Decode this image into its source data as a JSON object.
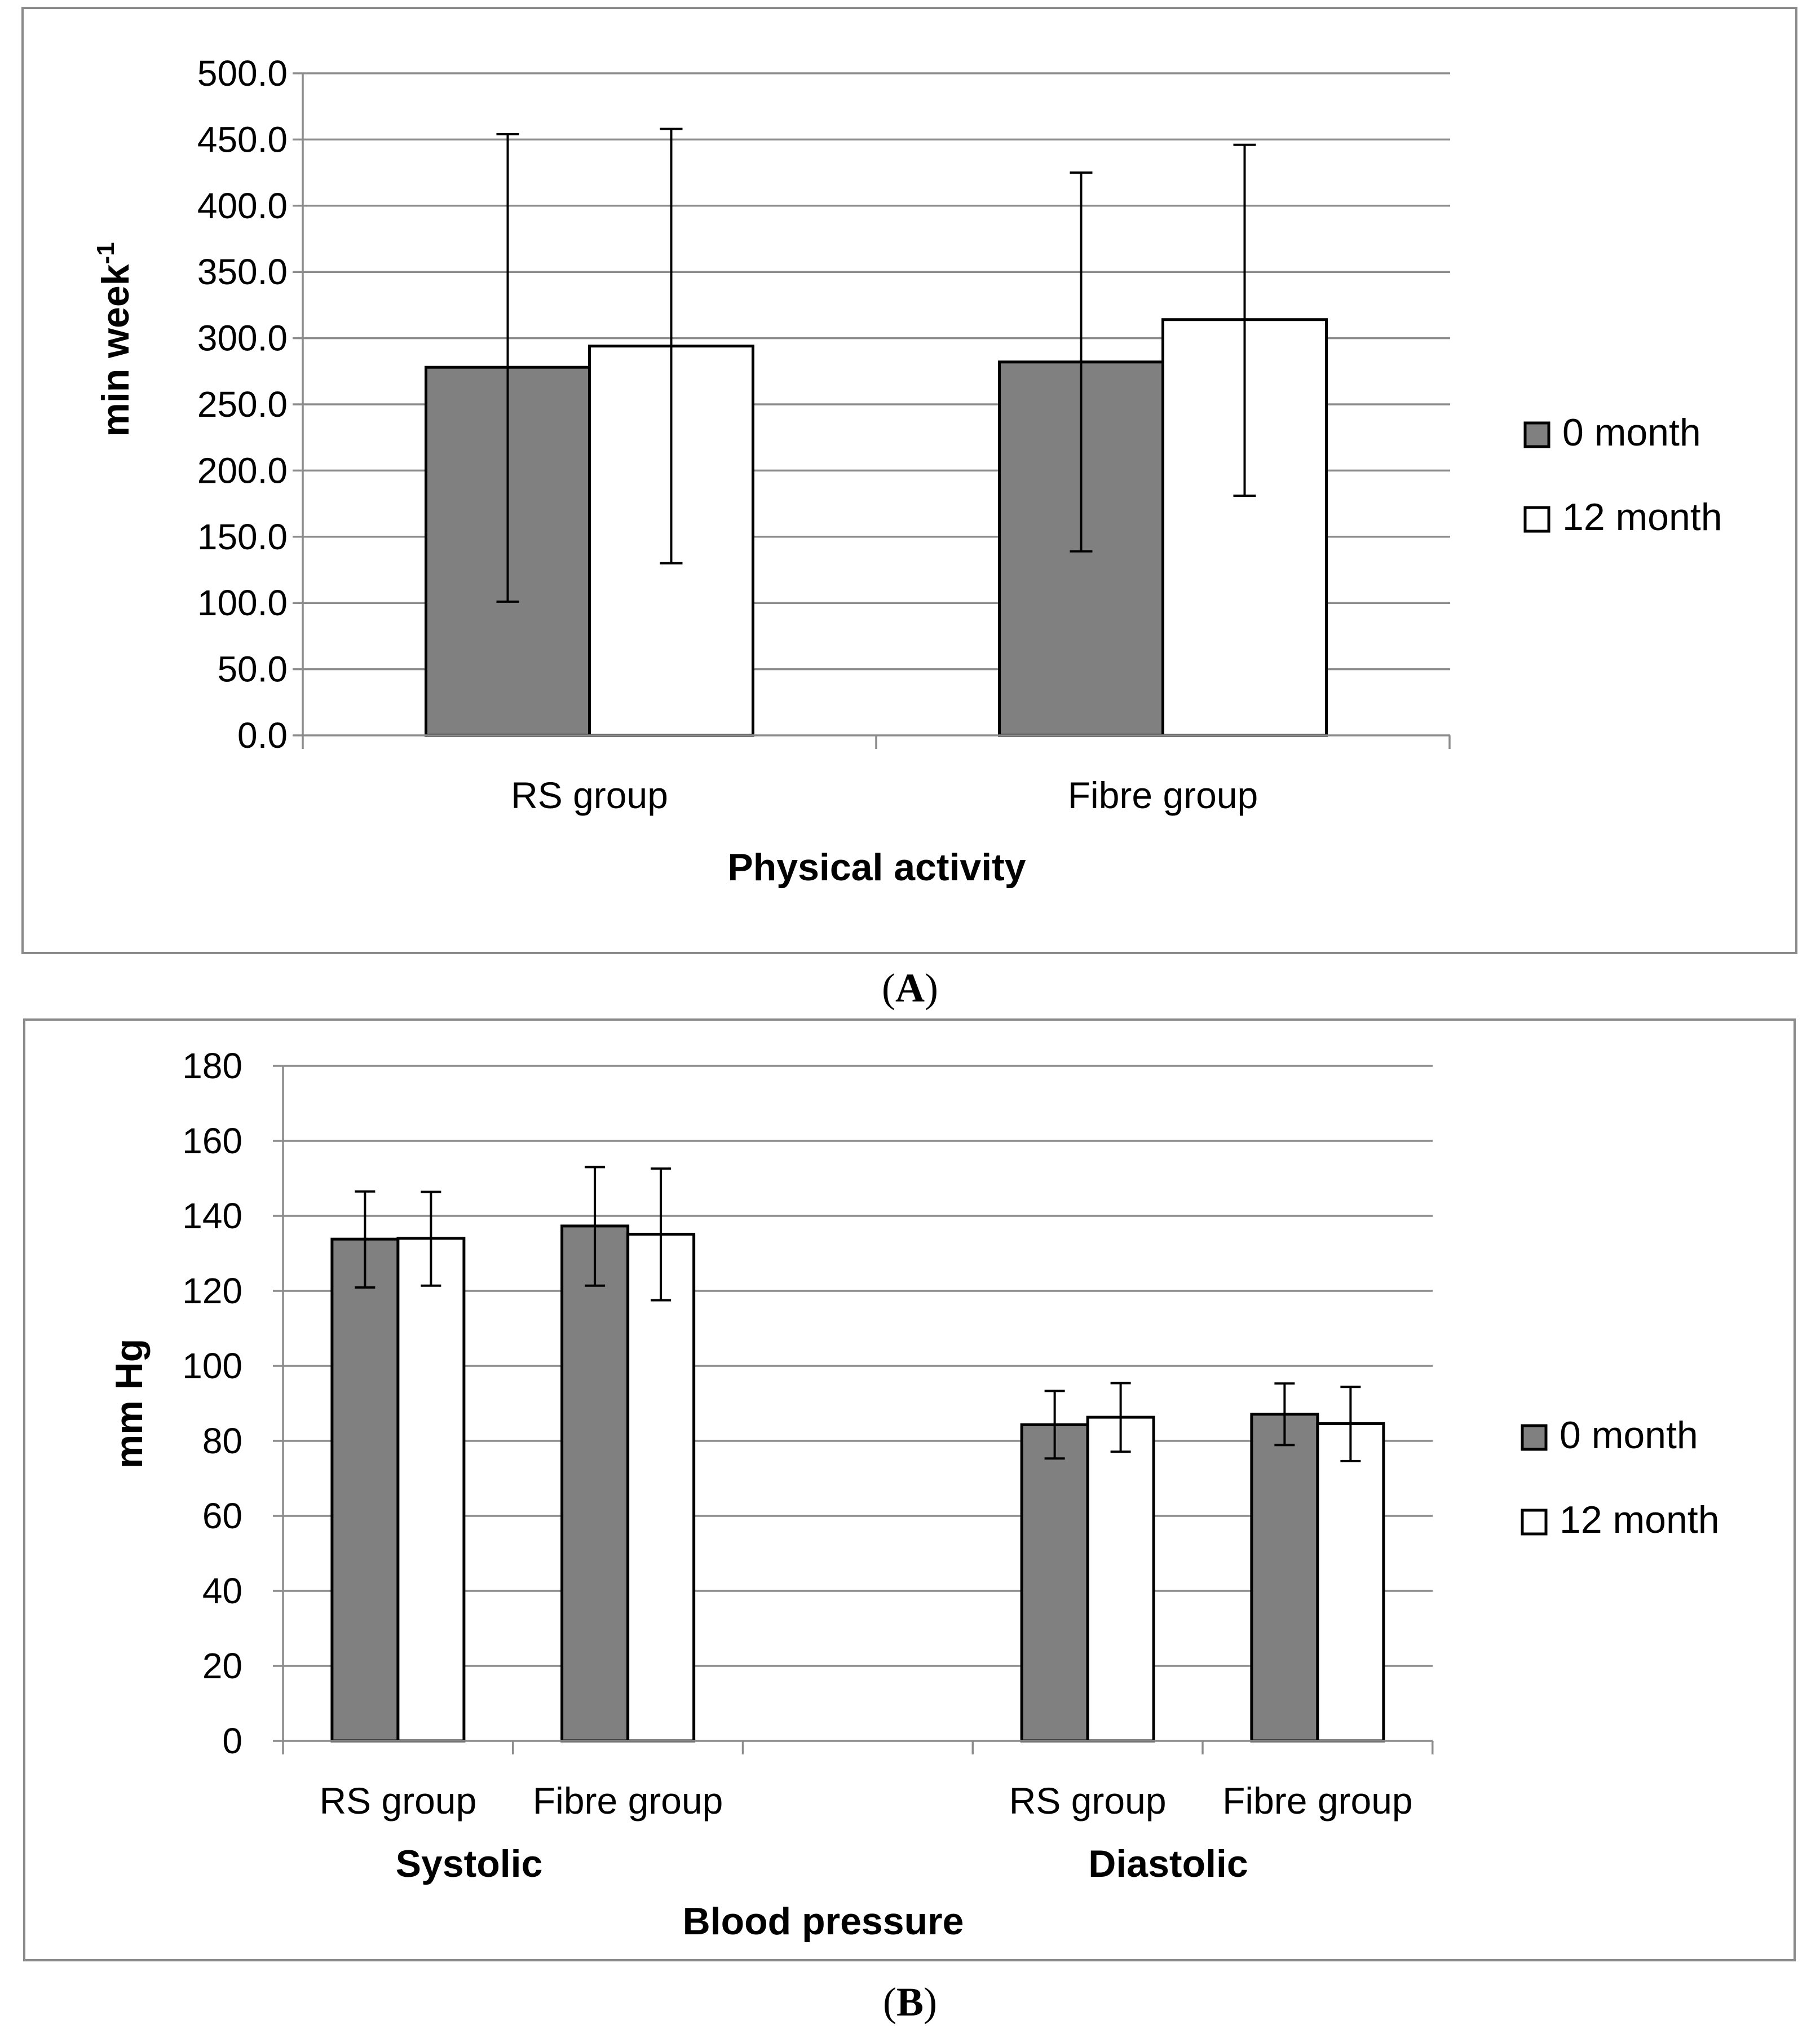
{
  "chart_data": [
    {
      "type": "bar",
      "panel_label": "A",
      "ylabel": "min week",
      "ylabel_superscript": "-1",
      "xlabel": "Physical activity",
      "categories": [
        "RS group",
        "Fibre group"
      ],
      "ylim": [
        0,
        500
      ],
      "yticks": [
        "0.0",
        "50.0",
        "100.0",
        "150.0",
        "200.0",
        "250.0",
        "300.0",
        "350.0",
        "400.0",
        "450.0",
        "500.0"
      ],
      "grid": true,
      "legend_position": "right",
      "series": [
        {
          "name": "0 month",
          "color": "#808080",
          "values": [
            278,
            282
          ],
          "err_low": [
            101,
            139
          ],
          "err_high": [
            454,
            425
          ]
        },
        {
          "name": "12 month",
          "color": "#ffffff",
          "values": [
            294,
            314
          ],
          "err_low": [
            130,
            181
          ],
          "err_high": [
            458,
            446
          ]
        }
      ]
    },
    {
      "type": "bar",
      "panel_label": "B",
      "ylabel": "mm Hg",
      "xlabel": "Blood pressure",
      "groups": [
        "Systolic",
        "Diastolic"
      ],
      "categories": [
        "RS group",
        "Fibre group",
        "RS group",
        "Fibre group"
      ],
      "ylim": [
        0,
        180
      ],
      "yticks": [
        "0",
        "20",
        "40",
        "60",
        "80",
        "100",
        "120",
        "140",
        "160",
        "180"
      ],
      "grid": true,
      "legend_position": "right",
      "series": [
        {
          "name": "0 month",
          "color": "#808080",
          "values": [
            133.8,
            137.3,
            84.3,
            87.1
          ],
          "err_low": [
            120.9,
            121.4,
            75.3,
            78.9
          ],
          "err_high": [
            146.5,
            153.0,
            93.3,
            95.3
          ]
        },
        {
          "name": "12 month",
          "color": "#ffffff",
          "values": [
            134.0,
            135.1,
            86.3,
            84.6
          ],
          "err_low": [
            121.4,
            117.5,
            77.1,
            74.6
          ],
          "err_high": [
            146.4,
            152.6,
            95.4,
            94.4
          ]
        }
      ]
    }
  ]
}
